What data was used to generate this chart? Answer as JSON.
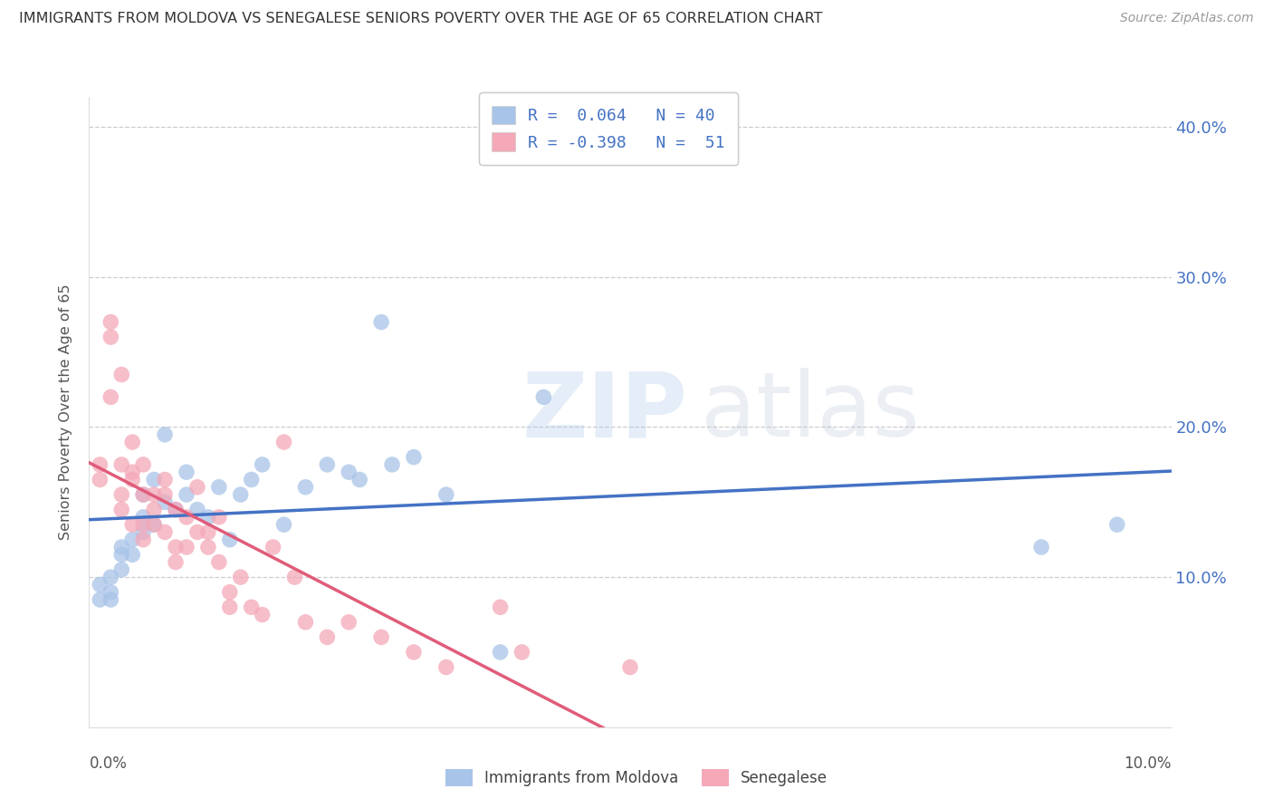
{
  "title": "IMMIGRANTS FROM MOLDOVA VS SENEGALESE SENIORS POVERTY OVER THE AGE OF 65 CORRELATION CHART",
  "source": "Source: ZipAtlas.com",
  "ylabel": "Seniors Poverty Over the Age of 65",
  "r_moldova": 0.064,
  "n_moldova": 40,
  "r_senegalese": -0.398,
  "n_senegalese": 51,
  "xlim": [
    0.0,
    0.1
  ],
  "ylim": [
    0.0,
    0.42
  ],
  "yticks": [
    0.1,
    0.2,
    0.3,
    0.4
  ],
  "ytick_labels": [
    "10.0%",
    "20.0%",
    "30.0%",
    "40.0%"
  ],
  "color_moldova": "#a8c4e8",
  "color_senegalese": "#f4a8b8",
  "line_color_moldova": "#4472c4",
  "line_color_senegalese": "#e05c7a",
  "moldova_x": [
    0.001,
    0.001,
    0.002,
    0.002,
    0.002,
    0.003,
    0.003,
    0.003,
    0.004,
    0.004,
    0.005,
    0.005,
    0.005,
    0.006,
    0.006,
    0.007,
    0.007,
    0.008,
    0.009,
    0.009,
    0.01,
    0.011,
    0.012,
    0.013,
    0.014,
    0.015,
    0.016,
    0.018,
    0.02,
    0.022,
    0.024,
    0.025,
    0.027,
    0.028,
    0.03,
    0.033,
    0.038,
    0.042,
    0.088,
    0.095
  ],
  "moldova_y": [
    0.085,
    0.095,
    0.085,
    0.09,
    0.1,
    0.105,
    0.115,
    0.12,
    0.115,
    0.125,
    0.13,
    0.14,
    0.155,
    0.135,
    0.165,
    0.15,
    0.195,
    0.145,
    0.155,
    0.17,
    0.145,
    0.14,
    0.16,
    0.125,
    0.155,
    0.165,
    0.175,
    0.135,
    0.16,
    0.175,
    0.17,
    0.165,
    0.27,
    0.175,
    0.18,
    0.155,
    0.05,
    0.22,
    0.12,
    0.135
  ],
  "senegalese_x": [
    0.001,
    0.001,
    0.002,
    0.002,
    0.002,
    0.003,
    0.003,
    0.003,
    0.003,
    0.004,
    0.004,
    0.004,
    0.004,
    0.005,
    0.005,
    0.005,
    0.005,
    0.006,
    0.006,
    0.006,
    0.007,
    0.007,
    0.007,
    0.008,
    0.008,
    0.008,
    0.009,
    0.009,
    0.01,
    0.01,
    0.011,
    0.011,
    0.012,
    0.012,
    0.013,
    0.013,
    0.014,
    0.015,
    0.016,
    0.017,
    0.018,
    0.019,
    0.02,
    0.022,
    0.024,
    0.027,
    0.03,
    0.033,
    0.038,
    0.04,
    0.05
  ],
  "senegalese_y": [
    0.175,
    0.165,
    0.26,
    0.27,
    0.22,
    0.235,
    0.175,
    0.155,
    0.145,
    0.19,
    0.17,
    0.165,
    0.135,
    0.175,
    0.155,
    0.135,
    0.125,
    0.155,
    0.145,
    0.135,
    0.165,
    0.155,
    0.13,
    0.145,
    0.12,
    0.11,
    0.14,
    0.12,
    0.16,
    0.13,
    0.13,
    0.12,
    0.11,
    0.14,
    0.08,
    0.09,
    0.1,
    0.08,
    0.075,
    0.12,
    0.19,
    0.1,
    0.07,
    0.06,
    0.07,
    0.06,
    0.05,
    0.04,
    0.08,
    0.05,
    0.04
  ]
}
